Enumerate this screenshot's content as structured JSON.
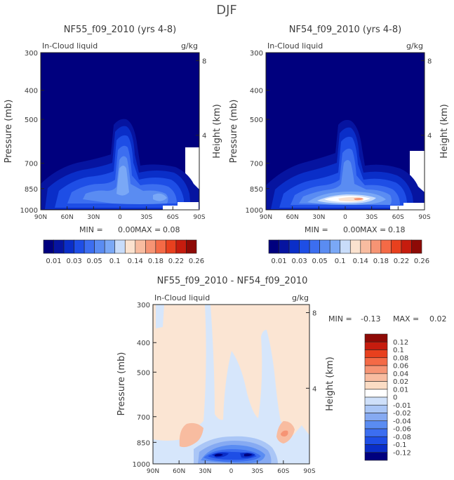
{
  "figure_title": "DJF",
  "chart_data": [
    {
      "type": "contour",
      "title": "NF55_f09_2010 (yrs 4-8)",
      "subtitle_left": "In-Cloud liquid",
      "subtitle_right": "g/kg",
      "xlabel": "",
      "ylabel": "Pressure (mb)",
      "ylabel_right": "Height (km)",
      "x_ticks": [
        "90N",
        "60N",
        "30N",
        "0",
        "30S",
        "60S",
        "90S"
      ],
      "y_ticks": [
        "300",
        "400",
        "500",
        "700",
        "850",
        "1000"
      ],
      "height_ticks": [
        "8",
        "4"
      ],
      "min_label": "MIN =",
      "min_value": "0.00",
      "max_label": "MAX =",
      "max_value": "0.08",
      "colorbar_labels": [
        "0.01",
        "0.03",
        "0.05",
        "0.1",
        "0.14",
        "0.18",
        "0.22",
        "0.26"
      ]
    },
    {
      "type": "contour",
      "title": "NF54_f09_2010 (yrs 4-8)",
      "subtitle_left": "In-Cloud liquid",
      "subtitle_right": "g/kg",
      "xlabel": "",
      "ylabel": "Pressure (mb)",
      "ylabel_right": "Height (km)",
      "x_ticks": [
        "90N",
        "60N",
        "30N",
        "0",
        "30S",
        "60S",
        "90S"
      ],
      "y_ticks": [
        "300",
        "400",
        "500",
        "700",
        "850",
        "1000"
      ],
      "height_ticks": [
        "8",
        "4"
      ],
      "min_label": "MIN =",
      "min_value": "0.00",
      "max_label": "MAX =",
      "max_value": "0.18",
      "colorbar_labels": [
        "0.01",
        "0.03",
        "0.05",
        "0.1",
        "0.14",
        "0.18",
        "0.22",
        "0.26"
      ]
    },
    {
      "type": "contour",
      "title": "NF55_f09_2010 - NF54_f09_2010",
      "subtitle_left": "In-Cloud liquid",
      "subtitle_right": "g/kg",
      "xlabel": "",
      "ylabel": "Pressure (mb)",
      "ylabel_right": "Height (km)",
      "x_ticks": [
        "90N",
        "60N",
        "30N",
        "0",
        "30S",
        "60S",
        "90S"
      ],
      "y_ticks": [
        "300",
        "400",
        "500",
        "700",
        "850",
        "1000"
      ],
      "height_ticks": [
        "8",
        "4"
      ],
      "min_label": "MIN =",
      "min_value": "-0.13",
      "max_label": "MAX =",
      "max_value": "0.02",
      "colorbar_labels": [
        "0.12",
        "0.1",
        "0.08",
        "0.06",
        "0.04",
        "0.02",
        "0.01",
        "0",
        "-0.01",
        "-0.02",
        "-0.04",
        "-0.06",
        "-0.08",
        "-0.1",
        "-0.12"
      ]
    }
  ],
  "colors": {
    "field_blues": [
      "#00007e",
      "#0614a0",
      "#0a2ec8",
      "#1e4ee6",
      "#3c6ef0",
      "#5a8cf2",
      "#7aa8f6",
      "#9ec2f8",
      "#c8dcfa"
    ],
    "seq_bar": [
      "#00007e",
      "#0614a0",
      "#0a2ec8",
      "#1e4ee6",
      "#3c6ef0",
      "#5a8cf2",
      "#7aa8f6",
      "#c8dcfa",
      "#fbe2cf",
      "#f8bca0",
      "#f69474",
      "#f46a46",
      "#e8401e",
      "#c61c0e",
      "#8e0a06"
    ],
    "diff_bar": [
      "#8e0a06",
      "#c61c0e",
      "#e8401e",
      "#f46a46",
      "#f69474",
      "#f8bca0",
      "#fbdcc4",
      "#ffffff",
      "#cfe0fa",
      "#aac6f6",
      "#86aaf2",
      "#5a8cf2",
      "#3c6ef0",
      "#1e4ee6",
      "#0a2ec8",
      "#00007e"
    ],
    "diff_bg": "#fbe5d3",
    "diff_light_blue": "#d6e6fb"
  }
}
